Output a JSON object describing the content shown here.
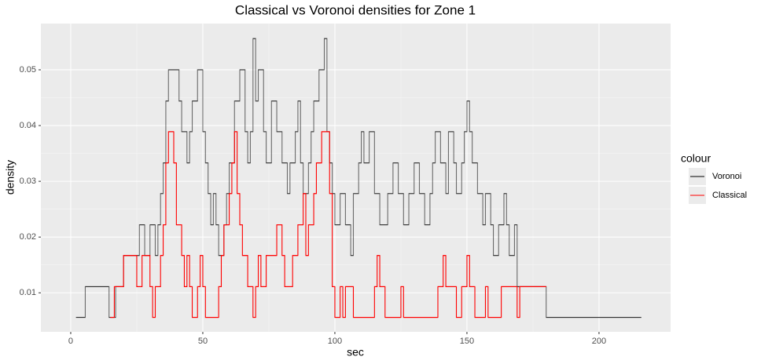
{
  "chart_data": {
    "type": "step",
    "title": "Classical vs Voronoi densities for Zone 1",
    "x_label": "sec",
    "y_label": "density",
    "xlim": [
      -11.3,
      227.1
    ],
    "ylim": [
      0.003,
      0.0583
    ],
    "xticks": [
      0,
      50,
      100,
      150,
      200
    ],
    "yticks": [
      0.01,
      0.02,
      0.03,
      0.04,
      0.05
    ],
    "grid": true,
    "legend_title": "colour",
    "legend_position": "right",
    "series": [
      {
        "name": "Voronoi",
        "color": "#000000",
        "alpha": 0.55,
        "x": [
          2,
          5.5,
          14.5,
          17,
          20,
          26,
          28,
          30,
          32,
          33,
          34,
          35,
          36,
          37,
          41,
          42,
          44,
          45,
          46,
          48,
          50,
          51,
          52,
          53,
          54,
          55,
          56,
          58,
          59,
          60,
          62,
          64,
          66,
          67,
          68,
          69,
          70,
          71,
          73,
          74,
          76,
          78,
          80,
          82,
          83,
          85,
          86,
          87,
          88,
          90,
          91,
          92,
          94,
          96,
          97,
          98,
          99,
          100,
          102,
          104,
          106,
          107,
          109,
          110,
          111,
          113,
          115,
          117,
          120,
          122,
          124,
          126,
          128,
          130,
          132,
          134,
          136,
          137,
          138,
          140,
          142,
          143,
          145,
          146,
          148,
          149,
          150,
          151,
          152,
          154,
          156,
          157,
          159,
          160,
          162,
          164,
          165,
          166,
          168,
          169,
          180,
          216
        ],
        "values": [
          0.0056,
          0.0111,
          0.0056,
          0.0111,
          0.0167,
          0.0222,
          0.0167,
          0.0222,
          0.0167,
          0.0222,
          0.0278,
          0.0333,
          0.0444,
          0.05,
          0.0444,
          0.0389,
          0.0333,
          0.0389,
          0.0444,
          0.05,
          0.0389,
          0.0333,
          0.0278,
          0.0222,
          0.0278,
          0.0222,
          0.0167,
          0.0222,
          0.0278,
          0.0333,
          0.0444,
          0.05,
          0.0389,
          0.0333,
          0.0389,
          0.0556,
          0.0444,
          0.05,
          0.0389,
          0.0333,
          0.0444,
          0.0389,
          0.0333,
          0.0278,
          0.0333,
          0.0389,
          0.0444,
          0.0333,
          0.0278,
          0.0333,
          0.0389,
          0.0444,
          0.05,
          0.0556,
          0.0389,
          0.0333,
          0.0278,
          0.0222,
          0.0278,
          0.0222,
          0.0167,
          0.0278,
          0.0333,
          0.0389,
          0.0333,
          0.0389,
          0.0278,
          0.0222,
          0.0278,
          0.0333,
          0.0278,
          0.0222,
          0.0278,
          0.0333,
          0.0278,
          0.0222,
          0.0278,
          0.0333,
          0.0389,
          0.0333,
          0.0278,
          0.0389,
          0.0333,
          0.0278,
          0.0333,
          0.0389,
          0.0444,
          0.0389,
          0.0333,
          0.0278,
          0.0222,
          0.0278,
          0.0222,
          0.0167,
          0.0222,
          0.0278,
          0.0222,
          0.0167,
          0.0222,
          0.0111,
          0.0056,
          0.0056
        ]
      },
      {
        "name": "Classical",
        "color": "#ff0000",
        "alpha": 1,
        "x": [
          15,
          16.5,
          20,
          25,
          27,
          30,
          31,
          32,
          34,
          35,
          36,
          37,
          39,
          40,
          42,
          43,
          44,
          45,
          46,
          48,
          49,
          50,
          51,
          56,
          57,
          58,
          60,
          61,
          62,
          63,
          64,
          65,
          67,
          69,
          70,
          71,
          72,
          74,
          78,
          80,
          81,
          84,
          86,
          88,
          89,
          90,
          92,
          93,
          95,
          98,
          99,
          100,
          102,
          103,
          104,
          107,
          115,
          116,
          117,
          119,
          125,
          126,
          139,
          141,
          142,
          146,
          148,
          150,
          151,
          153,
          157,
          158,
          163,
          169,
          170,
          180
        ],
        "values": [
          0.0056,
          0.0111,
          0.0167,
          0.0111,
          0.0167,
          0.0111,
          0.0056,
          0.0111,
          0.0167,
          0.0222,
          0.0333,
          0.0389,
          0.0333,
          0.0222,
          0.0167,
          0.0111,
          0.0167,
          0.0111,
          0.0056,
          0.0111,
          0.0167,
          0.0111,
          0.0056,
          0.0111,
          0.0167,
          0.0222,
          0.0278,
          0.0333,
          0.0389,
          0.0278,
          0.0222,
          0.0167,
          0.0111,
          0.0056,
          0.0111,
          0.0167,
          0.0111,
          0.0167,
          0.0222,
          0.0167,
          0.0111,
          0.0167,
          0.0222,
          0.0278,
          0.0167,
          0.0222,
          0.0278,
          0.0333,
          0.0389,
          0.0278,
          0.0111,
          0.0056,
          0.0111,
          0.0056,
          0.0111,
          0.0056,
          0.0111,
          0.0167,
          0.0111,
          0.0056,
          0.0111,
          0.0056,
          0.0111,
          0.0167,
          0.0111,
          0.0056,
          0.0111,
          0.0167,
          0.0111,
          0.0056,
          0.0111,
          0.0056,
          0.0111,
          0.0056,
          0.0111,
          0.0111
        ]
      }
    ]
  }
}
